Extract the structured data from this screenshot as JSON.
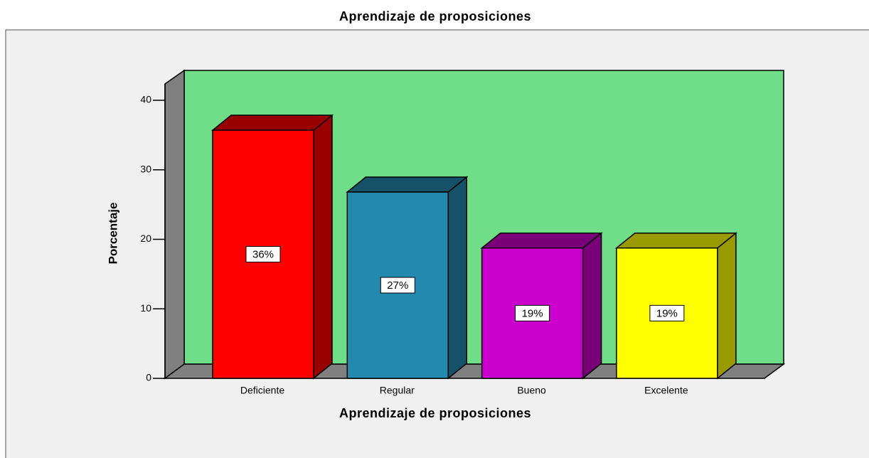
{
  "chart_data": {
    "type": "bar3d",
    "title": "Aprendizaje de proposiciones",
    "xlabel": "Aprendizaje de proposiciones",
    "ylabel": "Porcentaje",
    "categories": [
      "Deficiente",
      "Regular",
      "Bueno",
      "Excelente"
    ],
    "values": [
      35.7,
      26.8,
      18.75,
      18.75
    ],
    "value_labels": [
      "36%",
      "27%",
      "19%",
      "19%"
    ],
    "colors": [
      "#ff0000",
      "#2389ae",
      "#cc00cc",
      "#ffff00"
    ],
    "ylim": [
      0,
      40
    ],
    "yticks": [
      0,
      10,
      20,
      30,
      40
    ]
  }
}
